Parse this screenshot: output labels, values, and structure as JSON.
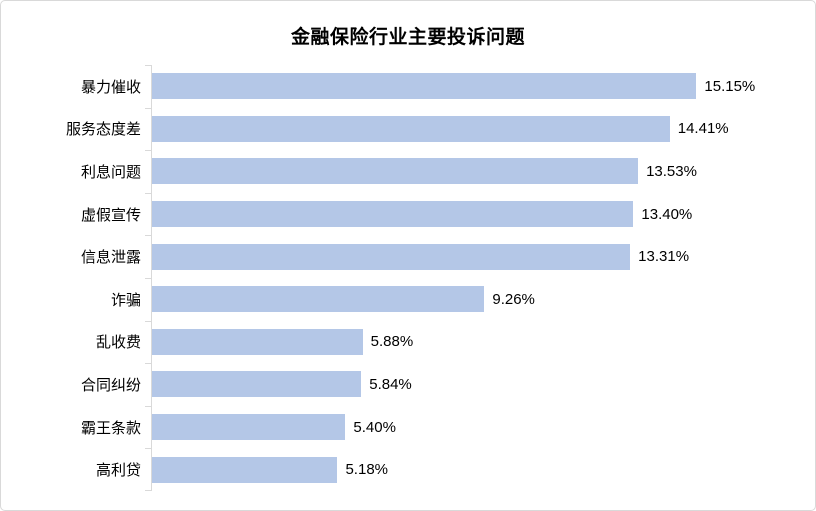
{
  "chart_data": {
    "type": "bar",
    "orientation": "horizontal",
    "title": "金融保险行业主要投诉问题",
    "categories": [
      "暴力催收",
      "服务态度差",
      "利息问题",
      "虚假宣传",
      "信息泄露",
      "诈骗",
      "乱收费",
      "合同纠纷",
      "霸王条款",
      "高利贷"
    ],
    "values": [
      15.15,
      14.41,
      13.53,
      13.4,
      13.31,
      9.26,
      5.88,
      5.84,
      5.4,
      5.18
    ],
    "value_labels": [
      "15.15%",
      "14.41%",
      "13.53%",
      "13.40%",
      "13.31%",
      "9.26%",
      "5.88%",
      "5.84%",
      "5.40%",
      "5.18%"
    ],
    "xlabel": "",
    "ylabel": "",
    "xlim": [
      0,
      16
    ],
    "grid": false,
    "legend": null,
    "data_labels_position": "outside-end",
    "bar_color": "#B4C7E7",
    "axis_color": "#D9D9D9",
    "title_color": "#000000",
    "label_color": "#000000"
  }
}
